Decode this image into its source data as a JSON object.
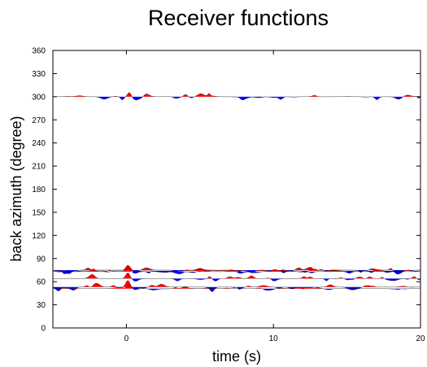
{
  "chart_data": {
    "type": "line",
    "title": "Receiver functions",
    "xlabel": "time (s)",
    "ylabel": "back azimuth (degree)",
    "xlim": [
      -5,
      20
    ],
    "ylim": [
      0,
      360
    ],
    "x_ticks": [
      0,
      10,
      20
    ],
    "x_tick_labels": [
      "0",
      "10",
      "20"
    ],
    "y_ticks": [
      0,
      30,
      60,
      90,
      120,
      150,
      180,
      210,
      240,
      270,
      300,
      330,
      360
    ],
    "y_tick_labels": [
      "0",
      "30",
      "60",
      "90",
      "120",
      "150",
      "180",
      "210",
      "240",
      "270",
      "300",
      "330",
      "360"
    ],
    "grid": false,
    "legend": "none",
    "positive_fill_color": "#ff0000",
    "negative_fill_color": "#0000ff",
    "trace_line_color": "#000000",
    "traces": [
      {
        "back_azimuth": 300,
        "peak_amplitude": 5,
        "peak_time": 0.2
      },
      {
        "back_azimuth": 75,
        "peak_amplitude": 6,
        "peak_time": 0.1
      },
      {
        "back_azimuth": 74,
        "peak_amplitude": 5,
        "peak_time": 0.2
      },
      {
        "back_azimuth": 73,
        "peak_amplitude": 5,
        "peak_time": 0.1
      },
      {
        "back_azimuth": 64,
        "peak_amplitude": 7,
        "peak_time": 0.1
      },
      {
        "back_azimuth": 53,
        "peak_amplitude": 8,
        "peak_time": 0.1
      },
      {
        "back_azimuth": 51,
        "peak_amplitude": 4,
        "peak_time": 0.2
      }
    ]
  }
}
